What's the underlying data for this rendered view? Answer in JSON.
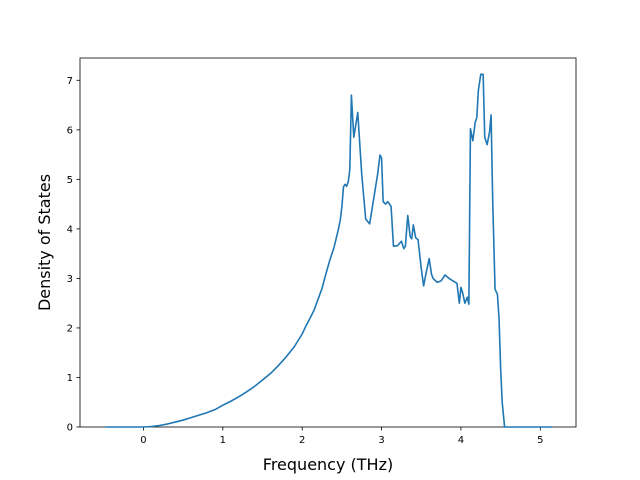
{
  "chart_data": {
    "type": "line",
    "title": "",
    "xlabel": "Frequency (THz)",
    "ylabel": "Density of States",
    "xlim": [
      -0.8,
      5.45
    ],
    "ylim": [
      0,
      7.45
    ],
    "xticks": [
      0,
      1,
      2,
      3,
      4,
      5
    ],
    "yticks": [
      0,
      1,
      2,
      3,
      4,
      5,
      6,
      7
    ],
    "grid": false,
    "legend": "none",
    "series": [
      {
        "color": "#1f77b4",
        "x": [
          -0.48,
          -0.3,
          -0.1,
          0.0,
          0.1,
          0.2,
          0.3,
          0.4,
          0.5,
          0.6,
          0.7,
          0.8,
          0.9,
          1.0,
          1.1,
          1.2,
          1.3,
          1.4,
          1.5,
          1.6,
          1.7,
          1.8,
          1.9,
          2.0,
          2.05,
          2.1,
          2.15,
          2.2,
          2.25,
          2.3,
          2.35,
          2.4,
          2.45,
          2.48,
          2.5,
          2.52,
          2.54,
          2.56,
          2.58,
          2.6,
          2.62,
          2.65,
          2.7,
          2.75,
          2.8,
          2.85,
          2.9,
          2.95,
          2.98,
          3.0,
          3.02,
          3.05,
          3.08,
          3.12,
          3.15,
          3.2,
          3.25,
          3.28,
          3.3,
          3.33,
          3.36,
          3.38,
          3.4,
          3.43,
          3.46,
          3.5,
          3.53,
          3.56,
          3.6,
          3.63,
          3.65,
          3.7,
          3.75,
          3.8,
          3.85,
          3.9,
          3.95,
          3.98,
          4.0,
          4.02,
          4.05,
          4.08,
          4.1,
          4.12,
          4.15,
          4.18,
          4.2,
          4.22,
          4.25,
          4.28,
          4.3,
          4.33,
          4.36,
          4.38,
          4.4,
          4.43,
          4.46,
          4.48,
          4.5,
          4.52,
          4.55,
          4.58,
          4.61,
          4.64,
          4.67,
          4.7,
          4.72,
          4.8,
          5.0,
          5.15
        ],
        "y": [
          0,
          0,
          0,
          0,
          0.01,
          0.03,
          0.06,
          0.1,
          0.14,
          0.19,
          0.24,
          0.29,
          0.35,
          0.44,
          0.52,
          0.61,
          0.71,
          0.82,
          0.95,
          1.08,
          1.24,
          1.42,
          1.62,
          1.88,
          2.05,
          2.2,
          2.36,
          2.58,
          2.8,
          3.1,
          3.38,
          3.62,
          3.95,
          4.18,
          4.45,
          4.85,
          4.9,
          4.86,
          4.95,
          5.2,
          6.7,
          5.85,
          6.35,
          5.1,
          4.2,
          4.1,
          4.6,
          5.1,
          5.49,
          5.43,
          4.55,
          4.5,
          4.55,
          4.45,
          3.65,
          3.66,
          3.75,
          3.6,
          3.65,
          4.27,
          3.85,
          3.8,
          4.08,
          3.82,
          3.78,
          3.2,
          2.85,
          3.1,
          3.4,
          3.08,
          3.0,
          2.92,
          2.95,
          3.07,
          3.0,
          2.95,
          2.9,
          2.5,
          2.82,
          2.72,
          2.5,
          2.62,
          2.48,
          6.02,
          5.78,
          6.15,
          6.25,
          6.8,
          7.12,
          7.12,
          5.85,
          5.7,
          5.95,
          6.3,
          4.6,
          2.78,
          2.68,
          2.2,
          1.2,
          0.5,
          0,
          0,
          0,
          0,
          0,
          0,
          0,
          0,
          0,
          0
        ]
      }
    ]
  }
}
